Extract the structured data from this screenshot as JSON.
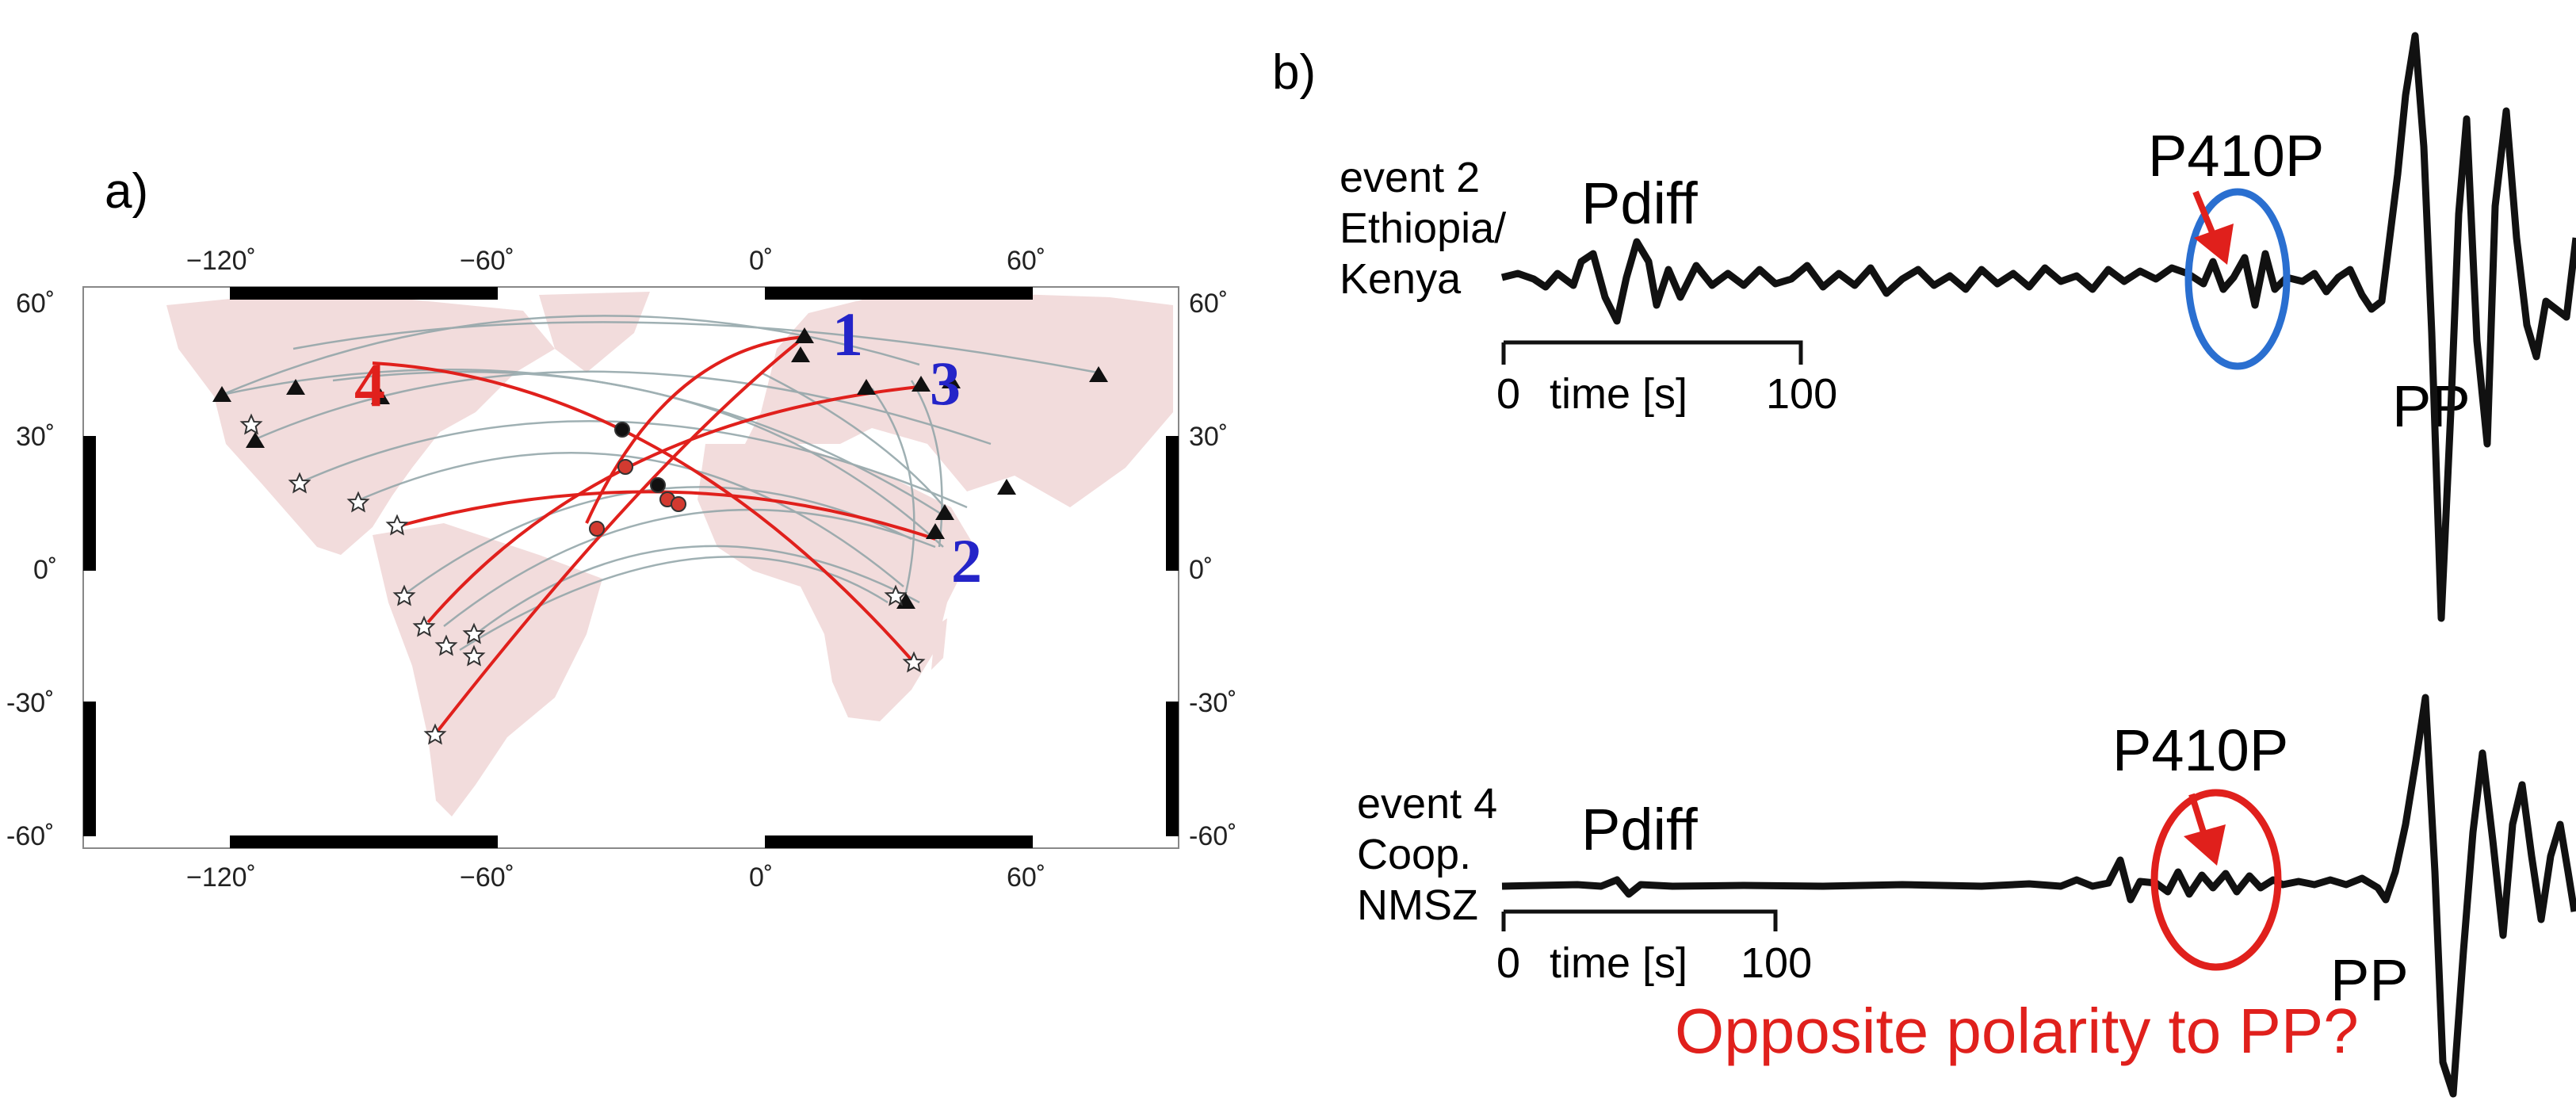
{
  "panel_a": {
    "label": "a)",
    "lon_ticks": [
      "−120˚",
      "−60˚",
      "0˚",
      "60˚"
    ],
    "lat_ticks_left": [
      "60˚",
      "30˚",
      "0˚",
      "-30˚",
      "-60˚"
    ],
    "lat_ticks_right": [
      "60˚",
      "30˚",
      "0˚",
      "-30˚",
      "-60˚"
    ],
    "event_labels": [
      {
        "text": "1",
        "color": "#2424c8"
      },
      {
        "text": "2",
        "color": "#2424c8"
      },
      {
        "text": "3",
        "color": "#2424c8"
      },
      {
        "text": "4",
        "color": "#e0201c"
      }
    ],
    "land_color": "#f2dcdc",
    "path_color": "#e0201c",
    "grey_path_color": "#8fa3a6"
  },
  "panel_b": {
    "label": "b)",
    "trace1": {
      "event_lines": [
        "event 2",
        "Ethiopia/",
        "Kenya"
      ],
      "pdiff": "Pdiff",
      "p410p": "P410P",
      "pp": "PP",
      "scale_start": "0",
      "scale_label": "time [s]",
      "scale_end": "100",
      "circle_color": "#2a6fd0"
    },
    "trace2": {
      "event_lines": [
        "event 4",
        "Coop.",
        "NMSZ"
      ],
      "pdiff": "Pdiff",
      "p410p": "P410P",
      "pp": "PP",
      "scale_start": "0",
      "scale_label": "time [s]",
      "scale_end": "100",
      "circle_color": "#e0201c",
      "question": "Opposite polarity to PP?"
    },
    "arrow_color": "#e0201c"
  }
}
